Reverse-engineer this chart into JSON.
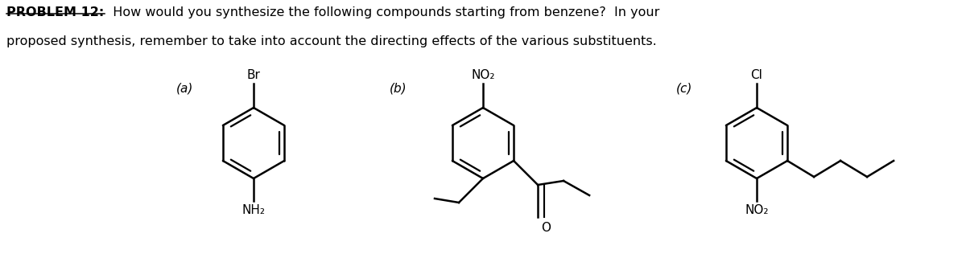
{
  "title_bold": "PROBLEM 12:",
  "title_rest_line1": "  How would you synthesize the following compounds starting from benzene?  In your",
  "title_line2": "proposed synthesis, remember to take into account the directing effects of the various substituents.",
  "bg_color": "#ffffff",
  "text_color": "#000000",
  "label_a": "(a)",
  "label_b": "(b)",
  "label_c": "(c)",
  "sub_a_top": "Br",
  "sub_a_bottom": "NH₂",
  "sub_b_top": "NO₂",
  "sub_b_ketone": "O",
  "sub_c_top": "Cl",
  "sub_c_bottom": "NO₂",
  "fig_width": 12.0,
  "fig_height": 3.16,
  "dpi": 100
}
